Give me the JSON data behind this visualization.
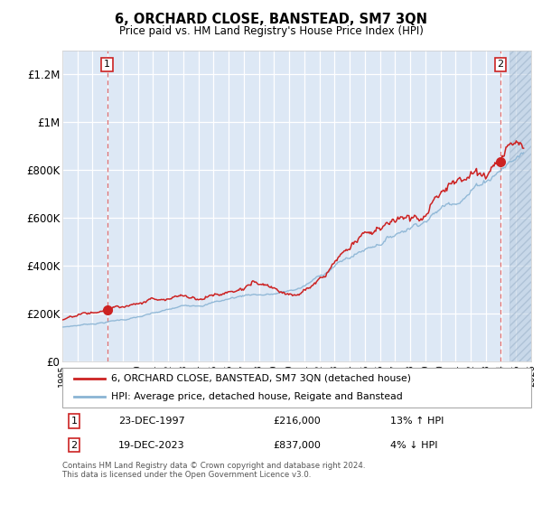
{
  "title": "6, ORCHARD CLOSE, BANSTEAD, SM7 3QN",
  "subtitle": "Price paid vs. HM Land Registry's House Price Index (HPI)",
  "legend_line1": "6, ORCHARD CLOSE, BANSTEAD, SM7 3QN (detached house)",
  "legend_line2": "HPI: Average price, detached house, Reigate and Banstead",
  "annotation1_label": "1",
  "annotation1_date": "23-DEC-1997",
  "annotation1_price": "£216,000",
  "annotation1_hpi": "13% ↑ HPI",
  "annotation1_year": 1997.97,
  "annotation1_value": 216000,
  "annotation2_label": "2",
  "annotation2_date": "19-DEC-2023",
  "annotation2_price": "£837,000",
  "annotation2_hpi": "4% ↓ HPI",
  "annotation2_year": 2023.97,
  "annotation2_value": 837000,
  "xmin": 1995.0,
  "xmax": 2026.0,
  "ymin": 0,
  "ymax": 1300000,
  "yticks": [
    0,
    200000,
    400000,
    600000,
    800000,
    1000000,
    1200000
  ],
  "ylabels": [
    "£0",
    "£200K",
    "£400K",
    "£600K",
    "£800K",
    "£1M",
    "£1.2M"
  ],
  "hpi_color": "#8ab4d4",
  "price_color": "#cc2222",
  "plot_bg_color": "#dde8f5",
  "hatch_color": "#b8cce0",
  "footer": "Contains HM Land Registry data © Crown copyright and database right 2024.\nThis data is licensed under the Open Government Licence v3.0.",
  "hatch_start": 2024.58,
  "seed": 42
}
